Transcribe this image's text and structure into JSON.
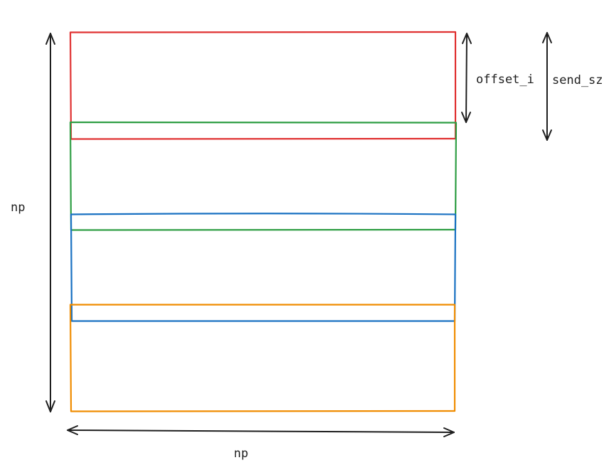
{
  "labels": {
    "offset": "offset_i",
    "send_size": "send_sz",
    "height": "np",
    "width": "np"
  },
  "blocks": [
    {
      "name": "block-red",
      "color": "#e03131"
    },
    {
      "name": "block-green",
      "color": "#2f9e44"
    },
    {
      "name": "block-blue",
      "color": "#1971c2"
    },
    {
      "name": "block-orange",
      "color": "#f08c00"
    }
  ],
  "arrow_color": "#1e1e1e"
}
